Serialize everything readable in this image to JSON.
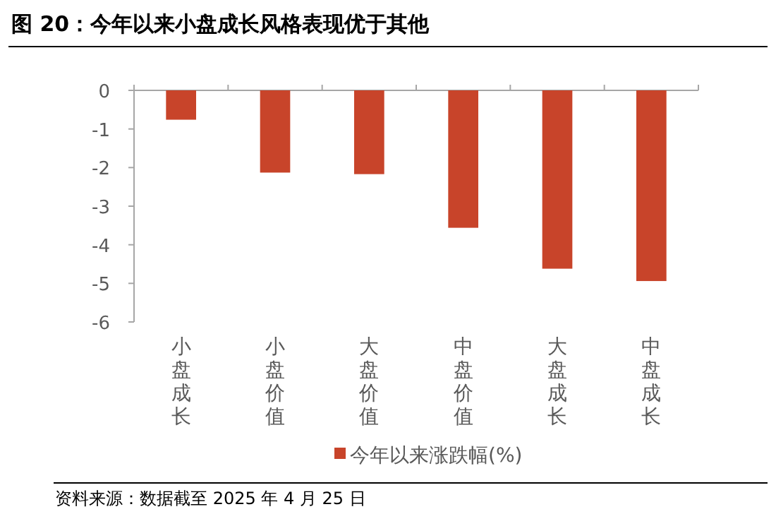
{
  "chart_data": {
    "type": "bar",
    "title": "图 20：今年以来小盘成长风格表现优于其他",
    "categories": [
      "小盘成长",
      "小盘价值",
      "大盘价值",
      "中盘价值",
      "大盘成长",
      "中盘成长"
    ],
    "series": [
      {
        "name": "今年以来涨跌幅(%)",
        "color": "#c8442a",
        "values": [
          -0.76,
          -2.13,
          -2.17,
          -3.56,
          -4.62,
          -4.94
        ]
      }
    ],
    "ylim": [
      -6,
      0
    ],
    "yticks": [
      -6,
      -5,
      -4,
      -3,
      -2,
      -1,
      0
    ],
    "legend": "bottom",
    "annotations": [
      "资料来源：数据截至 2025 年 4 月 25 日"
    ]
  }
}
